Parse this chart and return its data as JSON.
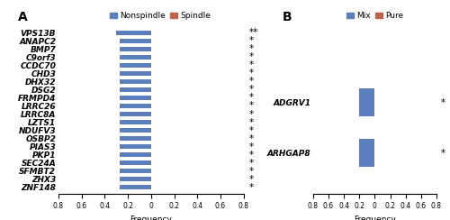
{
  "panel_A": {
    "genes": [
      "VPS13B",
      "ANAPC2",
      "BMP7",
      "C9orf3",
      "CCDC70",
      "CHD3",
      "DHX32",
      "DSG2",
      "FRMPD4",
      "LRRC26",
      "LRRC8A",
      "LZTS1",
      "NDUFV3",
      "OSBP2",
      "PIAS3",
      "PKP1",
      "SEC24A",
      "SFMBT2",
      "ZHX3",
      "ZNF148"
    ],
    "nonspindle_values": [
      -0.3,
      -0.27,
      -0.27,
      -0.27,
      -0.27,
      -0.27,
      -0.27,
      -0.27,
      -0.27,
      -0.27,
      -0.27,
      -0.27,
      -0.27,
      -0.27,
      -0.27,
      -0.27,
      -0.27,
      -0.27,
      -0.27,
      -0.27
    ],
    "spindle_values": [
      0,
      0,
      0,
      0,
      0,
      0,
      0,
      0,
      0,
      0,
      0,
      0,
      0,
      0,
      0,
      0,
      0,
      0,
      0,
      0
    ],
    "significance": [
      "**",
      "*",
      "*",
      "*",
      "*",
      "*",
      "*",
      "*",
      "*",
      "*",
      "*",
      "*",
      "*",
      "*",
      "*",
      "*",
      "*",
      "*",
      "*",
      "*"
    ],
    "nonspindle_color": "#5b7fbc",
    "spindle_color": "#c0614b",
    "xlim": [
      -0.8,
      0.8
    ],
    "xlabel": "Frequency",
    "legend_labels": [
      "Nonspindle",
      "Spindle"
    ]
  },
  "panel_B": {
    "genes": [
      "ADGRV1",
      "ARHGAP8"
    ],
    "mix_values": [
      -0.2,
      -0.2
    ],
    "pure_values": [
      0,
      0
    ],
    "significance": [
      "*",
      "*"
    ],
    "mix_color": "#5b7fbc",
    "pure_color": "#c0614b",
    "xlim": [
      -0.8,
      0.8
    ],
    "xlabel": "Frequency",
    "legend_labels": [
      "Mix",
      "Pure"
    ]
  },
  "bar_height": 0.55,
  "tick_fontsize": 5.5,
  "label_fontsize": 6.5,
  "gene_fontsize": 6.5,
  "sig_fontsize": 7.5,
  "legend_fontsize": 6.5,
  "panel_label_fontsize": 10
}
